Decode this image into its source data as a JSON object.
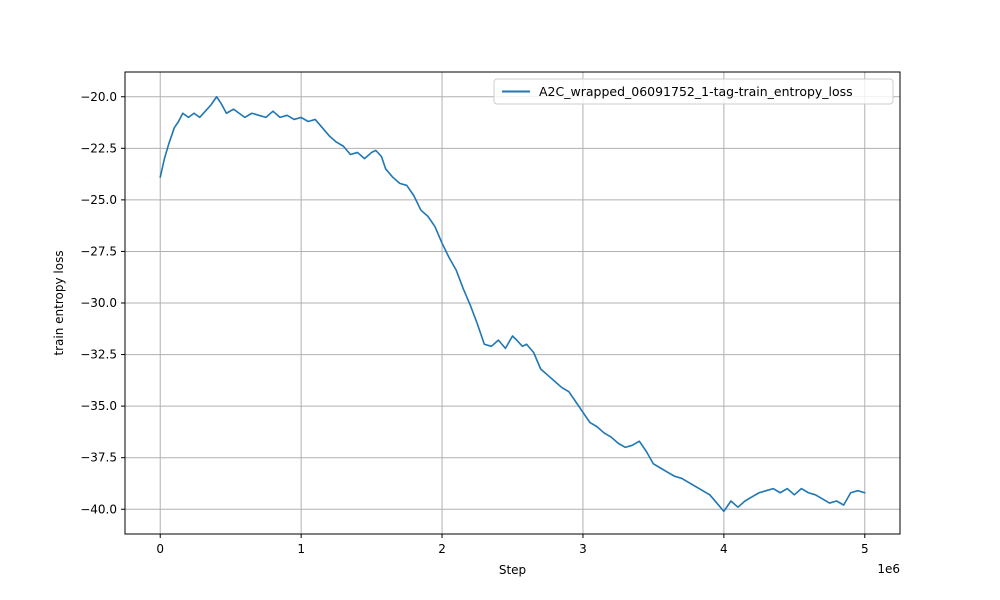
{
  "chart_data": {
    "type": "line",
    "title": "",
    "xlabel": "Step",
    "ylabel": "train entropy loss",
    "x_offset_label": "1e6",
    "x_multiplier": 1000000,
    "xlim": [
      -250000,
      5250000
    ],
    "ylim": [
      -41.2,
      -18.8
    ],
    "x_ticks": [
      0,
      1000000,
      2000000,
      3000000,
      4000000,
      5000000
    ],
    "x_tick_labels": [
      "0",
      "1",
      "2",
      "3",
      "4",
      "5"
    ],
    "y_ticks": [
      -20.0,
      -22.5,
      -25.0,
      -27.5,
      -30.0,
      -32.5,
      -35.0,
      -37.5,
      -40.0
    ],
    "y_tick_labels": [
      "−20.0",
      "−22.5",
      "−25.0",
      "−27.5",
      "−30.0",
      "−32.5",
      "−35.0",
      "−37.5",
      "−40.0"
    ],
    "grid": true,
    "legend_position": "top-right",
    "series": [
      {
        "name": "A2C_wrapped_06091752_1-tag-train_entropy_loss",
        "color": "#1f77b4",
        "x": [
          0,
          30000,
          60000,
          100000,
          130000,
          160000,
          200000,
          240000,
          280000,
          320000,
          360000,
          400000,
          430000,
          470000,
          520000,
          560000,
          600000,
          650000,
          700000,
          750000,
          800000,
          850000,
          900000,
          950000,
          1000000,
          1050000,
          1100000,
          1150000,
          1200000,
          1250000,
          1300000,
          1350000,
          1400000,
          1450000,
          1500000,
          1530000,
          1570000,
          1600000,
          1650000,
          1700000,
          1750000,
          1800000,
          1850000,
          1900000,
          1950000,
          2000000,
          2050000,
          2100000,
          2150000,
          2200000,
          2250000,
          2300000,
          2350000,
          2400000,
          2450000,
          2500000,
          2530000,
          2570000,
          2600000,
          2650000,
          2700000,
          2750000,
          2800000,
          2850000,
          2900000,
          2950000,
          3000000,
          3050000,
          3100000,
          3150000,
          3200000,
          3250000,
          3300000,
          3350000,
          3400000,
          3450000,
          3500000,
          3550000,
          3600000,
          3650000,
          3700000,
          3750000,
          3800000,
          3850000,
          3900000,
          3950000,
          4000000,
          4050000,
          4100000,
          4150000,
          4200000,
          4250000,
          4300000,
          4350000,
          4400000,
          4450000,
          4500000,
          4550000,
          4600000,
          4650000,
          4700000,
          4750000,
          4800000,
          4850000,
          4900000,
          4950000,
          5000000
        ],
        "y": [
          -23.9,
          -23.0,
          -22.3,
          -21.5,
          -21.2,
          -20.8,
          -21.0,
          -20.8,
          -21.0,
          -20.7,
          -20.4,
          -20.0,
          -20.3,
          -20.8,
          -20.6,
          -20.8,
          -21.0,
          -20.8,
          -20.9,
          -21.0,
          -20.7,
          -21.0,
          -20.9,
          -21.1,
          -21.0,
          -21.2,
          -21.1,
          -21.5,
          -21.9,
          -22.2,
          -22.4,
          -22.8,
          -22.7,
          -23.0,
          -22.7,
          -22.6,
          -22.9,
          -23.5,
          -23.9,
          -24.2,
          -24.3,
          -24.8,
          -25.5,
          -25.8,
          -26.3,
          -27.1,
          -27.8,
          -28.4,
          -29.3,
          -30.1,
          -31.0,
          -32.0,
          -32.1,
          -31.8,
          -32.2,
          -31.6,
          -31.8,
          -32.1,
          -32.0,
          -32.4,
          -33.2,
          -33.5,
          -33.8,
          -34.1,
          -34.3,
          -34.8,
          -35.3,
          -35.8,
          -36.0,
          -36.3,
          -36.5,
          -36.8,
          -37.0,
          -36.9,
          -36.7,
          -37.2,
          -37.8,
          -38.0,
          -38.2,
          -38.4,
          -38.5,
          -38.7,
          -38.9,
          -39.1,
          -39.3,
          -39.7,
          -40.1,
          -39.6,
          -39.9,
          -39.6,
          -39.4,
          -39.2,
          -39.1,
          -39.0,
          -39.2,
          -39.0,
          -39.3,
          -39.0,
          -39.2,
          -39.3,
          -39.5,
          -39.7,
          -39.6,
          -39.8,
          -39.2,
          -39.1,
          -39.2
        ]
      }
    ]
  }
}
